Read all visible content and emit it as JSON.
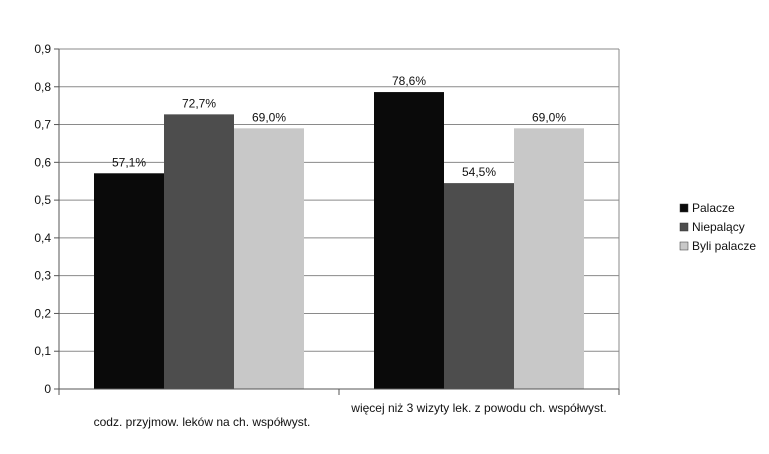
{
  "chart_data": {
    "type": "bar",
    "categories": [
      "codz. przyjmow. leków na ch. współwyst.",
      "więcej niż 3 wizyty lek. z powodu ch. współwyst."
    ],
    "series": [
      {
        "name": "Palacze",
        "values": [
          0.571,
          0.786
        ],
        "labels": [
          "57,1%",
          "78,6%"
        ],
        "color": "#0a0a0a"
      },
      {
        "name": "Niepalący",
        "values": [
          0.727,
          0.545
        ],
        "labels": [
          "72,7%",
          "54,5%"
        ],
        "color": "#4d4d4d"
      },
      {
        "name": "Byli palacze",
        "values": [
          0.69,
          0.69
        ],
        "labels": [
          "69,0%",
          "69,0%"
        ],
        "color": "#c8c8c8"
      }
    ],
    "yticks": [
      {
        "value": 0,
        "label": "0"
      },
      {
        "value": 0.1,
        "label": "0,1"
      },
      {
        "value": 0.2,
        "label": "0,2"
      },
      {
        "value": 0.3,
        "label": "0,3"
      },
      {
        "value": 0.4,
        "label": "0,4"
      },
      {
        "value": 0.5,
        "label": "0,5"
      },
      {
        "value": 0.6,
        "label": "0,6"
      },
      {
        "value": 0.7,
        "label": "0,7"
      },
      {
        "value": 0.8,
        "label": "0,8"
      },
      {
        "value": 0.9,
        "label": "0,9"
      }
    ],
    "ylim": [
      0,
      0.9
    ],
    "grid": true,
    "legend_position": "right"
  }
}
